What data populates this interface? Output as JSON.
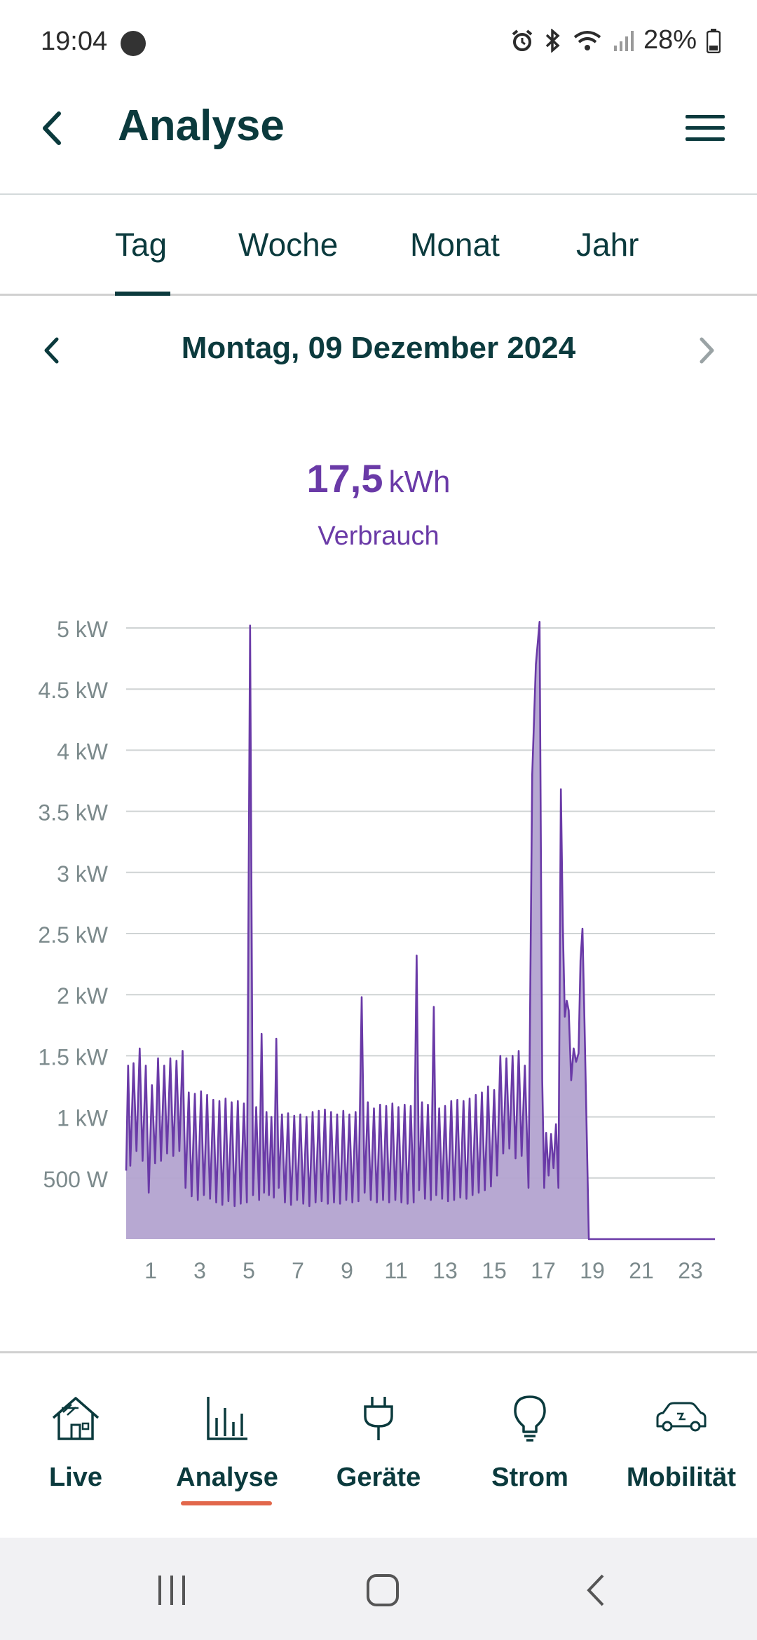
{
  "status_bar": {
    "time": "19:04",
    "battery": "28%"
  },
  "header": {
    "title": "Analyse"
  },
  "tabs": [
    {
      "label": "Tag"
    },
    {
      "label": "Woche"
    },
    {
      "label": "Monat"
    },
    {
      "label": "Jahr"
    }
  ],
  "active_tab": "Tag",
  "date": {
    "label": "Montag, 09 Dezember 2024"
  },
  "summary": {
    "value": "17,5",
    "unit": "kWh",
    "label": "Verbrauch"
  },
  "colors": {
    "accent": "#6a3aa7",
    "area_fill": "#b3a3d0",
    "primary": "#0b3a3d",
    "nav_indicator": "#e2674b"
  },
  "chart_data": {
    "type": "area",
    "title": "",
    "xlabel": "",
    "ylabel": "",
    "x_unit": "hour",
    "xlim": [
      0,
      24
    ],
    "ylim": [
      0,
      5000
    ],
    "y_ticks": [
      500,
      1000,
      1500,
      2000,
      2500,
      3000,
      3500,
      4000,
      4500,
      5000
    ],
    "y_tick_labels": [
      "500 W",
      "1 kW",
      "1.5 kW",
      "2 kW",
      "2.5 kW",
      "3 kW",
      "3.5 kW",
      "4 kW",
      "4.5 kW",
      "5 kW"
    ],
    "x_ticks": [
      1,
      3,
      5,
      7,
      9,
      11,
      13,
      15,
      17,
      19,
      21,
      23
    ],
    "x_tick_labels": [
      "1",
      "3",
      "5",
      "7",
      "9",
      "11",
      "13",
      "15",
      "17",
      "19",
      "21",
      "23"
    ],
    "grid": true,
    "series": [
      {
        "values": [
          [
            0.0,
            560
          ],
          [
            0.08,
            1420
          ],
          [
            0.17,
            600
          ],
          [
            0.3,
            1440
          ],
          [
            0.42,
            720
          ],
          [
            0.55,
            1560
          ],
          [
            0.67,
            640
          ],
          [
            0.8,
            1420
          ],
          [
            0.92,
            380
          ],
          [
            1.05,
            1260
          ],
          [
            1.18,
            620
          ],
          [
            1.3,
            1480
          ],
          [
            1.42,
            640
          ],
          [
            1.55,
            1420
          ],
          [
            1.67,
            700
          ],
          [
            1.8,
            1480
          ],
          [
            1.92,
            680
          ],
          [
            2.05,
            1460
          ],
          [
            2.17,
            720
          ],
          [
            2.3,
            1540
          ],
          [
            2.42,
            420
          ],
          [
            2.55,
            1200
          ],
          [
            2.67,
            350
          ],
          [
            2.8,
            1190
          ],
          [
            2.92,
            320
          ],
          [
            3.05,
            1210
          ],
          [
            3.17,
            360
          ],
          [
            3.3,
            1180
          ],
          [
            3.42,
            330
          ],
          [
            3.55,
            1140
          ],
          [
            3.67,
            300
          ],
          [
            3.8,
            1130
          ],
          [
            3.92,
            280
          ],
          [
            4.05,
            1150
          ],
          [
            4.17,
            310
          ],
          [
            4.3,
            1120
          ],
          [
            4.42,
            270
          ],
          [
            4.55,
            1130
          ],
          [
            4.67,
            290
          ],
          [
            4.8,
            1110
          ],
          [
            4.92,
            300
          ],
          [
            5.05,
            5020
          ],
          [
            5.17,
            360
          ],
          [
            5.3,
            1080
          ],
          [
            5.42,
            320
          ],
          [
            5.52,
            1680
          ],
          [
            5.62,
            380
          ],
          [
            5.72,
            1040
          ],
          [
            5.82,
            360
          ],
          [
            5.92,
            1000
          ],
          [
            6.02,
            340
          ],
          [
            6.12,
            1640
          ],
          [
            6.22,
            420
          ],
          [
            6.35,
            1020
          ],
          [
            6.47,
            300
          ],
          [
            6.6,
            1030
          ],
          [
            6.72,
            280
          ],
          [
            6.85,
            1010
          ],
          [
            6.97,
            320
          ],
          [
            7.1,
            1020
          ],
          [
            7.22,
            290
          ],
          [
            7.35,
            1000
          ],
          [
            7.47,
            270
          ],
          [
            7.6,
            1040
          ],
          [
            7.72,
            300
          ],
          [
            7.85,
            1050
          ],
          [
            7.97,
            310
          ],
          [
            8.1,
            1060
          ],
          [
            8.22,
            290
          ],
          [
            8.35,
            1040
          ],
          [
            8.47,
            300
          ],
          [
            8.6,
            1020
          ],
          [
            8.72,
            290
          ],
          [
            8.85,
            1050
          ],
          [
            8.97,
            320
          ],
          [
            9.1,
            1020
          ],
          [
            9.22,
            300
          ],
          [
            9.35,
            1040
          ],
          [
            9.47,
            310
          ],
          [
            9.6,
            1980
          ],
          [
            9.72,
            380
          ],
          [
            9.85,
            1120
          ],
          [
            9.97,
            320
          ],
          [
            10.1,
            1070
          ],
          [
            10.22,
            300
          ],
          [
            10.35,
            1100
          ],
          [
            10.47,
            320
          ],
          [
            10.6,
            1090
          ],
          [
            10.72,
            300
          ],
          [
            10.85,
            1110
          ],
          [
            10.97,
            320
          ],
          [
            11.1,
            1080
          ],
          [
            11.22,
            300
          ],
          [
            11.35,
            1100
          ],
          [
            11.47,
            290
          ],
          [
            11.6,
            1090
          ],
          [
            11.72,
            300
          ],
          [
            11.84,
            2320
          ],
          [
            11.94,
            400
          ],
          [
            12.06,
            1120
          ],
          [
            12.18,
            330
          ],
          [
            12.3,
            1100
          ],
          [
            12.42,
            320
          ],
          [
            12.54,
            1900
          ],
          [
            12.64,
            360
          ],
          [
            12.76,
            1070
          ],
          [
            12.88,
            330
          ],
          [
            13.0,
            1090
          ],
          [
            13.12,
            310
          ],
          [
            13.25,
            1130
          ],
          [
            13.37,
            320
          ],
          [
            13.5,
            1140
          ],
          [
            13.62,
            340
          ],
          [
            13.75,
            1130
          ],
          [
            13.87,
            330
          ],
          [
            14.0,
            1150
          ],
          [
            14.12,
            360
          ],
          [
            14.25,
            1180
          ],
          [
            14.37,
            380
          ],
          [
            14.5,
            1200
          ],
          [
            14.62,
            400
          ],
          [
            14.75,
            1250
          ],
          [
            14.87,
            430
          ],
          [
            15.0,
            1220
          ],
          [
            15.12,
            520
          ],
          [
            15.25,
            1500
          ],
          [
            15.37,
            700
          ],
          [
            15.5,
            1480
          ],
          [
            15.62,
            740
          ],
          [
            15.75,
            1500
          ],
          [
            15.87,
            660
          ],
          [
            16.0,
            1540
          ],
          [
            16.12,
            680
          ],
          [
            16.25,
            1420
          ],
          [
            16.4,
            420
          ],
          [
            16.55,
            3800
          ],
          [
            16.7,
            4700
          ],
          [
            16.85,
            5050
          ],
          [
            16.96,
            1300
          ],
          [
            17.04,
            420
          ],
          [
            17.12,
            870
          ],
          [
            17.22,
            520
          ],
          [
            17.32,
            860
          ],
          [
            17.42,
            580
          ],
          [
            17.52,
            940
          ],
          [
            17.62,
            420
          ],
          [
            17.72,
            3680
          ],
          [
            17.8,
            2560
          ],
          [
            17.88,
            1820
          ],
          [
            17.96,
            1950
          ],
          [
            18.04,
            1870
          ],
          [
            18.14,
            1300
          ],
          [
            18.24,
            1560
          ],
          [
            18.34,
            1450
          ],
          [
            18.44,
            1520
          ],
          [
            18.52,
            2280
          ],
          [
            18.6,
            2540
          ],
          [
            18.68,
            1800
          ],
          [
            18.78,
            800
          ],
          [
            18.86,
            0
          ],
          [
            24.0,
            0
          ]
        ]
      }
    ]
  },
  "bottom_nav": [
    {
      "label": "Live",
      "icon": "house-solar-icon"
    },
    {
      "label": "Analyse",
      "icon": "bar-chart-icon"
    },
    {
      "label": "Geräte",
      "icon": "plug-icon"
    },
    {
      "label": "Strom",
      "icon": "lightbulb-icon"
    },
    {
      "label": "Mobilität",
      "icon": "electric-car-icon"
    }
  ],
  "active_nav": "Analyse"
}
